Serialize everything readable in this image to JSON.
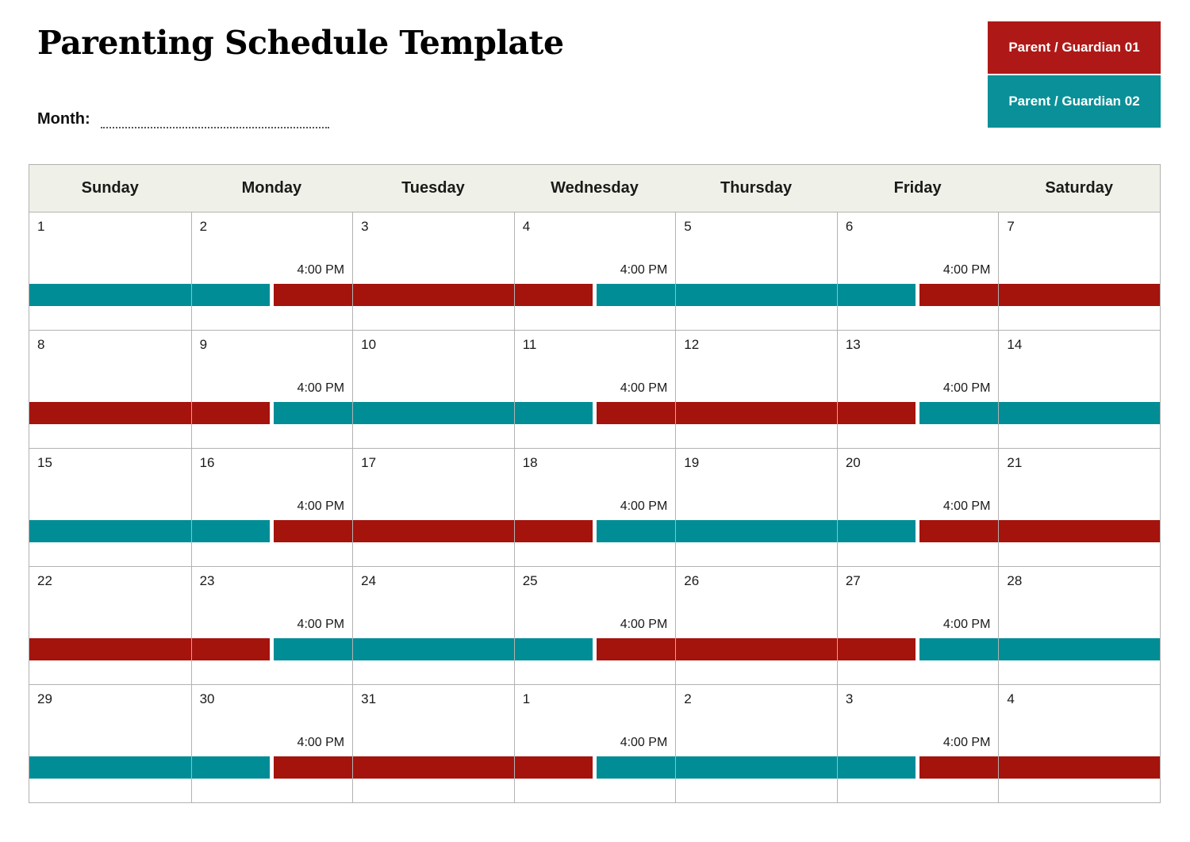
{
  "page": {
    "title": "Parenting Schedule Template",
    "month_label": "Month:"
  },
  "legend": {
    "items": [
      {
        "id": "parent1",
        "label": "Parent / Guardian 01",
        "color": "#AE1917"
      },
      {
        "id": "parent2",
        "label": "Parent / Guardian 02",
        "color": "#0A9098"
      }
    ]
  },
  "calendar": {
    "day_headers": [
      "Sunday",
      "Monday",
      "Tuesday",
      "Wednesday",
      "Thursday",
      "Friday",
      "Saturday"
    ],
    "transition_time": "4:00 PM",
    "bar_colors": {
      "parent1": "#A5130D",
      "parent2": "#008D96"
    },
    "weeks": [
      {
        "days": [
          {
            "date": "1",
            "segments": [
              "parent2"
            ]
          },
          {
            "date": "2",
            "time": "4:00 PM",
            "segments": [
              "parent2",
              "parent1"
            ]
          },
          {
            "date": "3",
            "segments": [
              "parent1"
            ]
          },
          {
            "date": "4",
            "time": "4:00 PM",
            "segments": [
              "parent1",
              "parent2"
            ]
          },
          {
            "date": "5",
            "segments": [
              "parent2"
            ]
          },
          {
            "date": "6",
            "time": "4:00 PM",
            "segments": [
              "parent2",
              "parent1"
            ]
          },
          {
            "date": "7",
            "segments": [
              "parent1"
            ]
          }
        ]
      },
      {
        "days": [
          {
            "date": "8",
            "segments": [
              "parent1"
            ]
          },
          {
            "date": "9",
            "time": "4:00 PM",
            "segments": [
              "parent1",
              "parent2"
            ]
          },
          {
            "date": "10",
            "segments": [
              "parent2"
            ]
          },
          {
            "date": "11",
            "time": "4:00 PM",
            "segments": [
              "parent2",
              "parent1"
            ]
          },
          {
            "date": "12",
            "segments": [
              "parent1"
            ]
          },
          {
            "date": "13",
            "time": "4:00 PM",
            "segments": [
              "parent1",
              "parent2"
            ]
          },
          {
            "date": "14",
            "segments": [
              "parent2"
            ]
          }
        ]
      },
      {
        "days": [
          {
            "date": "15",
            "segments": [
              "parent2"
            ]
          },
          {
            "date": "16",
            "time": "4:00 PM",
            "segments": [
              "parent2",
              "parent1"
            ]
          },
          {
            "date": "17",
            "segments": [
              "parent1"
            ]
          },
          {
            "date": "18",
            "time": "4:00 PM",
            "segments": [
              "parent1",
              "parent2"
            ]
          },
          {
            "date": "19",
            "segments": [
              "parent2"
            ]
          },
          {
            "date": "20",
            "time": "4:00 PM",
            "segments": [
              "parent2",
              "parent1"
            ]
          },
          {
            "date": "21",
            "segments": [
              "parent1"
            ]
          }
        ]
      },
      {
        "days": [
          {
            "date": "22",
            "segments": [
              "parent1"
            ]
          },
          {
            "date": "23",
            "time": "4:00 PM",
            "segments": [
              "parent1",
              "parent2"
            ]
          },
          {
            "date": "24",
            "segments": [
              "parent2"
            ]
          },
          {
            "date": "25",
            "time": "4:00 PM",
            "segments": [
              "parent2",
              "parent1"
            ]
          },
          {
            "date": "26",
            "segments": [
              "parent1"
            ]
          },
          {
            "date": "27",
            "time": "4:00 PM",
            "segments": [
              "parent1",
              "parent2"
            ]
          },
          {
            "date": "28",
            "segments": [
              "parent2"
            ]
          }
        ]
      },
      {
        "days": [
          {
            "date": "29",
            "segments": [
              "parent2"
            ]
          },
          {
            "date": "30",
            "time": "4:00 PM",
            "segments": [
              "parent2",
              "parent1"
            ]
          },
          {
            "date": "31",
            "segments": [
              "parent1"
            ]
          },
          {
            "date": "1",
            "time": "4:00 PM",
            "segments": [
              "parent1",
              "parent2"
            ]
          },
          {
            "date": "2",
            "segments": [
              "parent2"
            ]
          },
          {
            "date": "3",
            "time": "4:00 PM",
            "segments": [
              "parent2",
              "parent1"
            ]
          },
          {
            "date": "4",
            "segments": [
              "parent1"
            ]
          }
        ]
      }
    ]
  }
}
